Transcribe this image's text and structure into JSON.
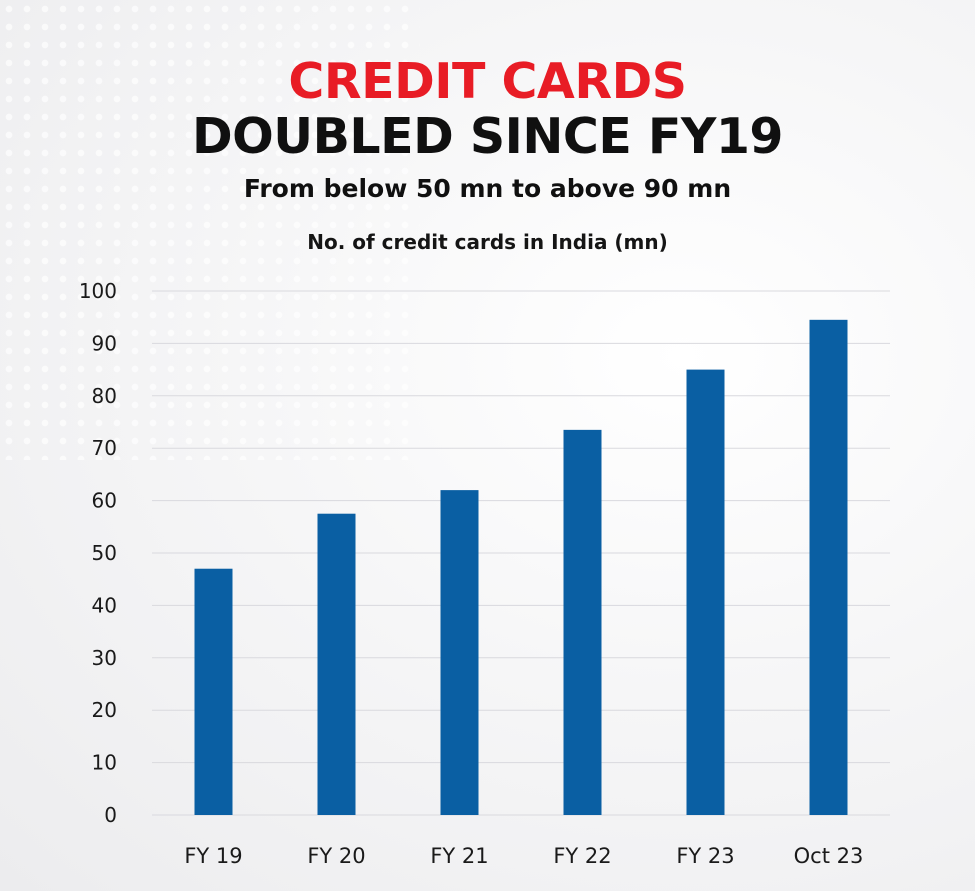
{
  "header": {
    "title_line1": "CREDIT CARDS",
    "title_line2": "DOUBLED SINCE FY19",
    "subtitle": "From below 50 mn to above 90 mn"
  },
  "colors": {
    "title_accent": "#e81c25",
    "bar": "#0a5fa3",
    "grid": "#d9d9de"
  },
  "chart_data": {
    "type": "bar",
    "title": "No. of credit cards in India (mn)",
    "xlabel": "",
    "ylabel": "",
    "categories": [
      "FY 19",
      "FY 20",
      "FY 21",
      "FY 22",
      "FY 23",
      "Oct 23"
    ],
    "values": [
      47,
      57.5,
      62,
      73.5,
      85,
      94.5
    ],
    "ylim": [
      0,
      100
    ],
    "yticks": [
      0,
      10,
      20,
      30,
      40,
      50,
      60,
      70,
      80,
      90,
      100
    ],
    "grid": true,
    "legend": "none"
  }
}
